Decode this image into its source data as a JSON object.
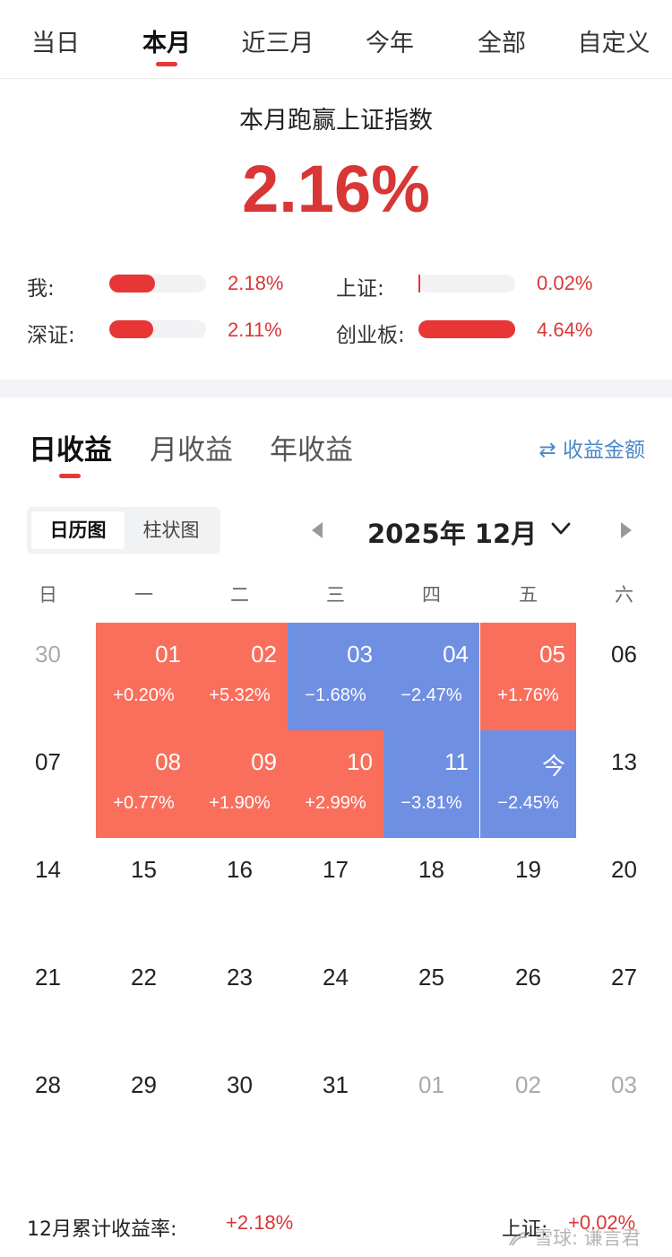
{
  "period_tabs": [
    "当日",
    "本月",
    "近三月",
    "今年",
    "全部",
    "自定义"
  ],
  "summary": {
    "title": "本月跑赢上证指数",
    "value": "2.16%"
  },
  "comparison": [
    {
      "label": "我:",
      "value": "2.18%",
      "fraction": 0.47
    },
    {
      "label": "上证:",
      "value": "0.02%",
      "fraction": 0.004
    },
    {
      "label": "深证:",
      "value": "2.11%",
      "fraction": 0.455
    },
    {
      "label": "创业板:",
      "value": "4.64%",
      "fraction": 1.0
    }
  ],
  "earnings_tabs": [
    "日收益",
    "月收益",
    "年收益"
  ],
  "amount_toggle": "⇄ 收益金额",
  "view_toggle": [
    "日历图",
    "柱状图"
  ],
  "month_label": "2025年 12月",
  "weekdays": [
    "日",
    "一",
    "二",
    "三",
    "四",
    "五",
    "六"
  ],
  "calendar": [
    [
      {
        "d": "30",
        "s": "muted"
      },
      {
        "d": "01",
        "r": "+0.20%",
        "s": "up"
      },
      {
        "d": "02",
        "r": "+5.32%",
        "s": "up"
      },
      {
        "d": "03",
        "r": "−1.68%",
        "s": "down"
      },
      {
        "d": "04",
        "r": "−2.47%",
        "s": "down"
      },
      {
        "d": "05",
        "r": "+1.76%",
        "s": "up"
      },
      {
        "d": "06",
        "s": "plain"
      }
    ],
    [
      {
        "d": "07",
        "s": "plain"
      },
      {
        "d": "08",
        "r": "+0.77%",
        "s": "up"
      },
      {
        "d": "09",
        "r": "+1.90%",
        "s": "up"
      },
      {
        "d": "10",
        "r": "+2.99%",
        "s": "up"
      },
      {
        "d": "11",
        "r": "−3.81%",
        "s": "down"
      },
      {
        "d": "今",
        "r": "−2.45%",
        "s": "down"
      },
      {
        "d": "13",
        "s": "plain"
      }
    ],
    [
      {
        "d": "14",
        "s": "plain"
      },
      {
        "d": "15",
        "s": "plain"
      },
      {
        "d": "16",
        "s": "plain"
      },
      {
        "d": "17",
        "s": "plain"
      },
      {
        "d": "18",
        "s": "plain"
      },
      {
        "d": "19",
        "s": "plain"
      },
      {
        "d": "20",
        "s": "plain"
      }
    ],
    [
      {
        "d": "21",
        "s": "plain"
      },
      {
        "d": "22",
        "s": "plain"
      },
      {
        "d": "23",
        "s": "plain"
      },
      {
        "d": "24",
        "s": "plain"
      },
      {
        "d": "25",
        "s": "plain"
      },
      {
        "d": "26",
        "s": "plain"
      },
      {
        "d": "27",
        "s": "plain"
      }
    ],
    [
      {
        "d": "28",
        "s": "plain"
      },
      {
        "d": "29",
        "s": "plain"
      },
      {
        "d": "30",
        "s": "plain"
      },
      {
        "d": "31",
        "s": "plain"
      },
      {
        "d": "01",
        "s": "muted"
      },
      {
        "d": "02",
        "s": "muted"
      },
      {
        "d": "03",
        "s": "muted"
      }
    ]
  ],
  "footer": {
    "label": "12月累计收益率:",
    "value": "+2.18%",
    "index_label": "上证:",
    "index_value": "+0.02%"
  },
  "watermark": "雪球: 谦言君",
  "colors": {
    "accent": "#e53935",
    "up_cell": "#fa6f5c",
    "down_cell": "#6f8fe3",
    "link": "#4a88c7"
  }
}
